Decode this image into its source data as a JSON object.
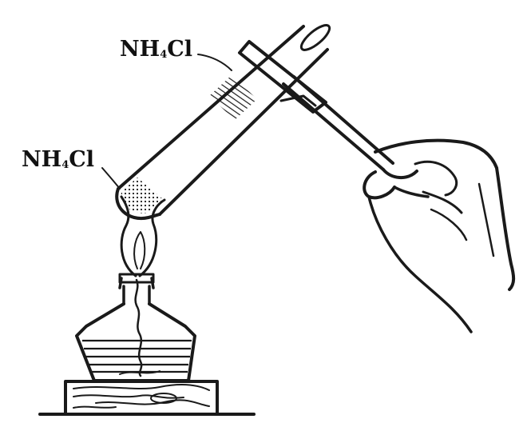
{
  "labels": {
    "top": {
      "main": "NH",
      "subscript": "4",
      "rest": "Cl"
    },
    "left": {
      "main": "NH",
      "subscript": "4",
      "rest": "Cl"
    }
  },
  "colors": {
    "ink": "#1a1a1a",
    "background": "#ffffff"
  }
}
